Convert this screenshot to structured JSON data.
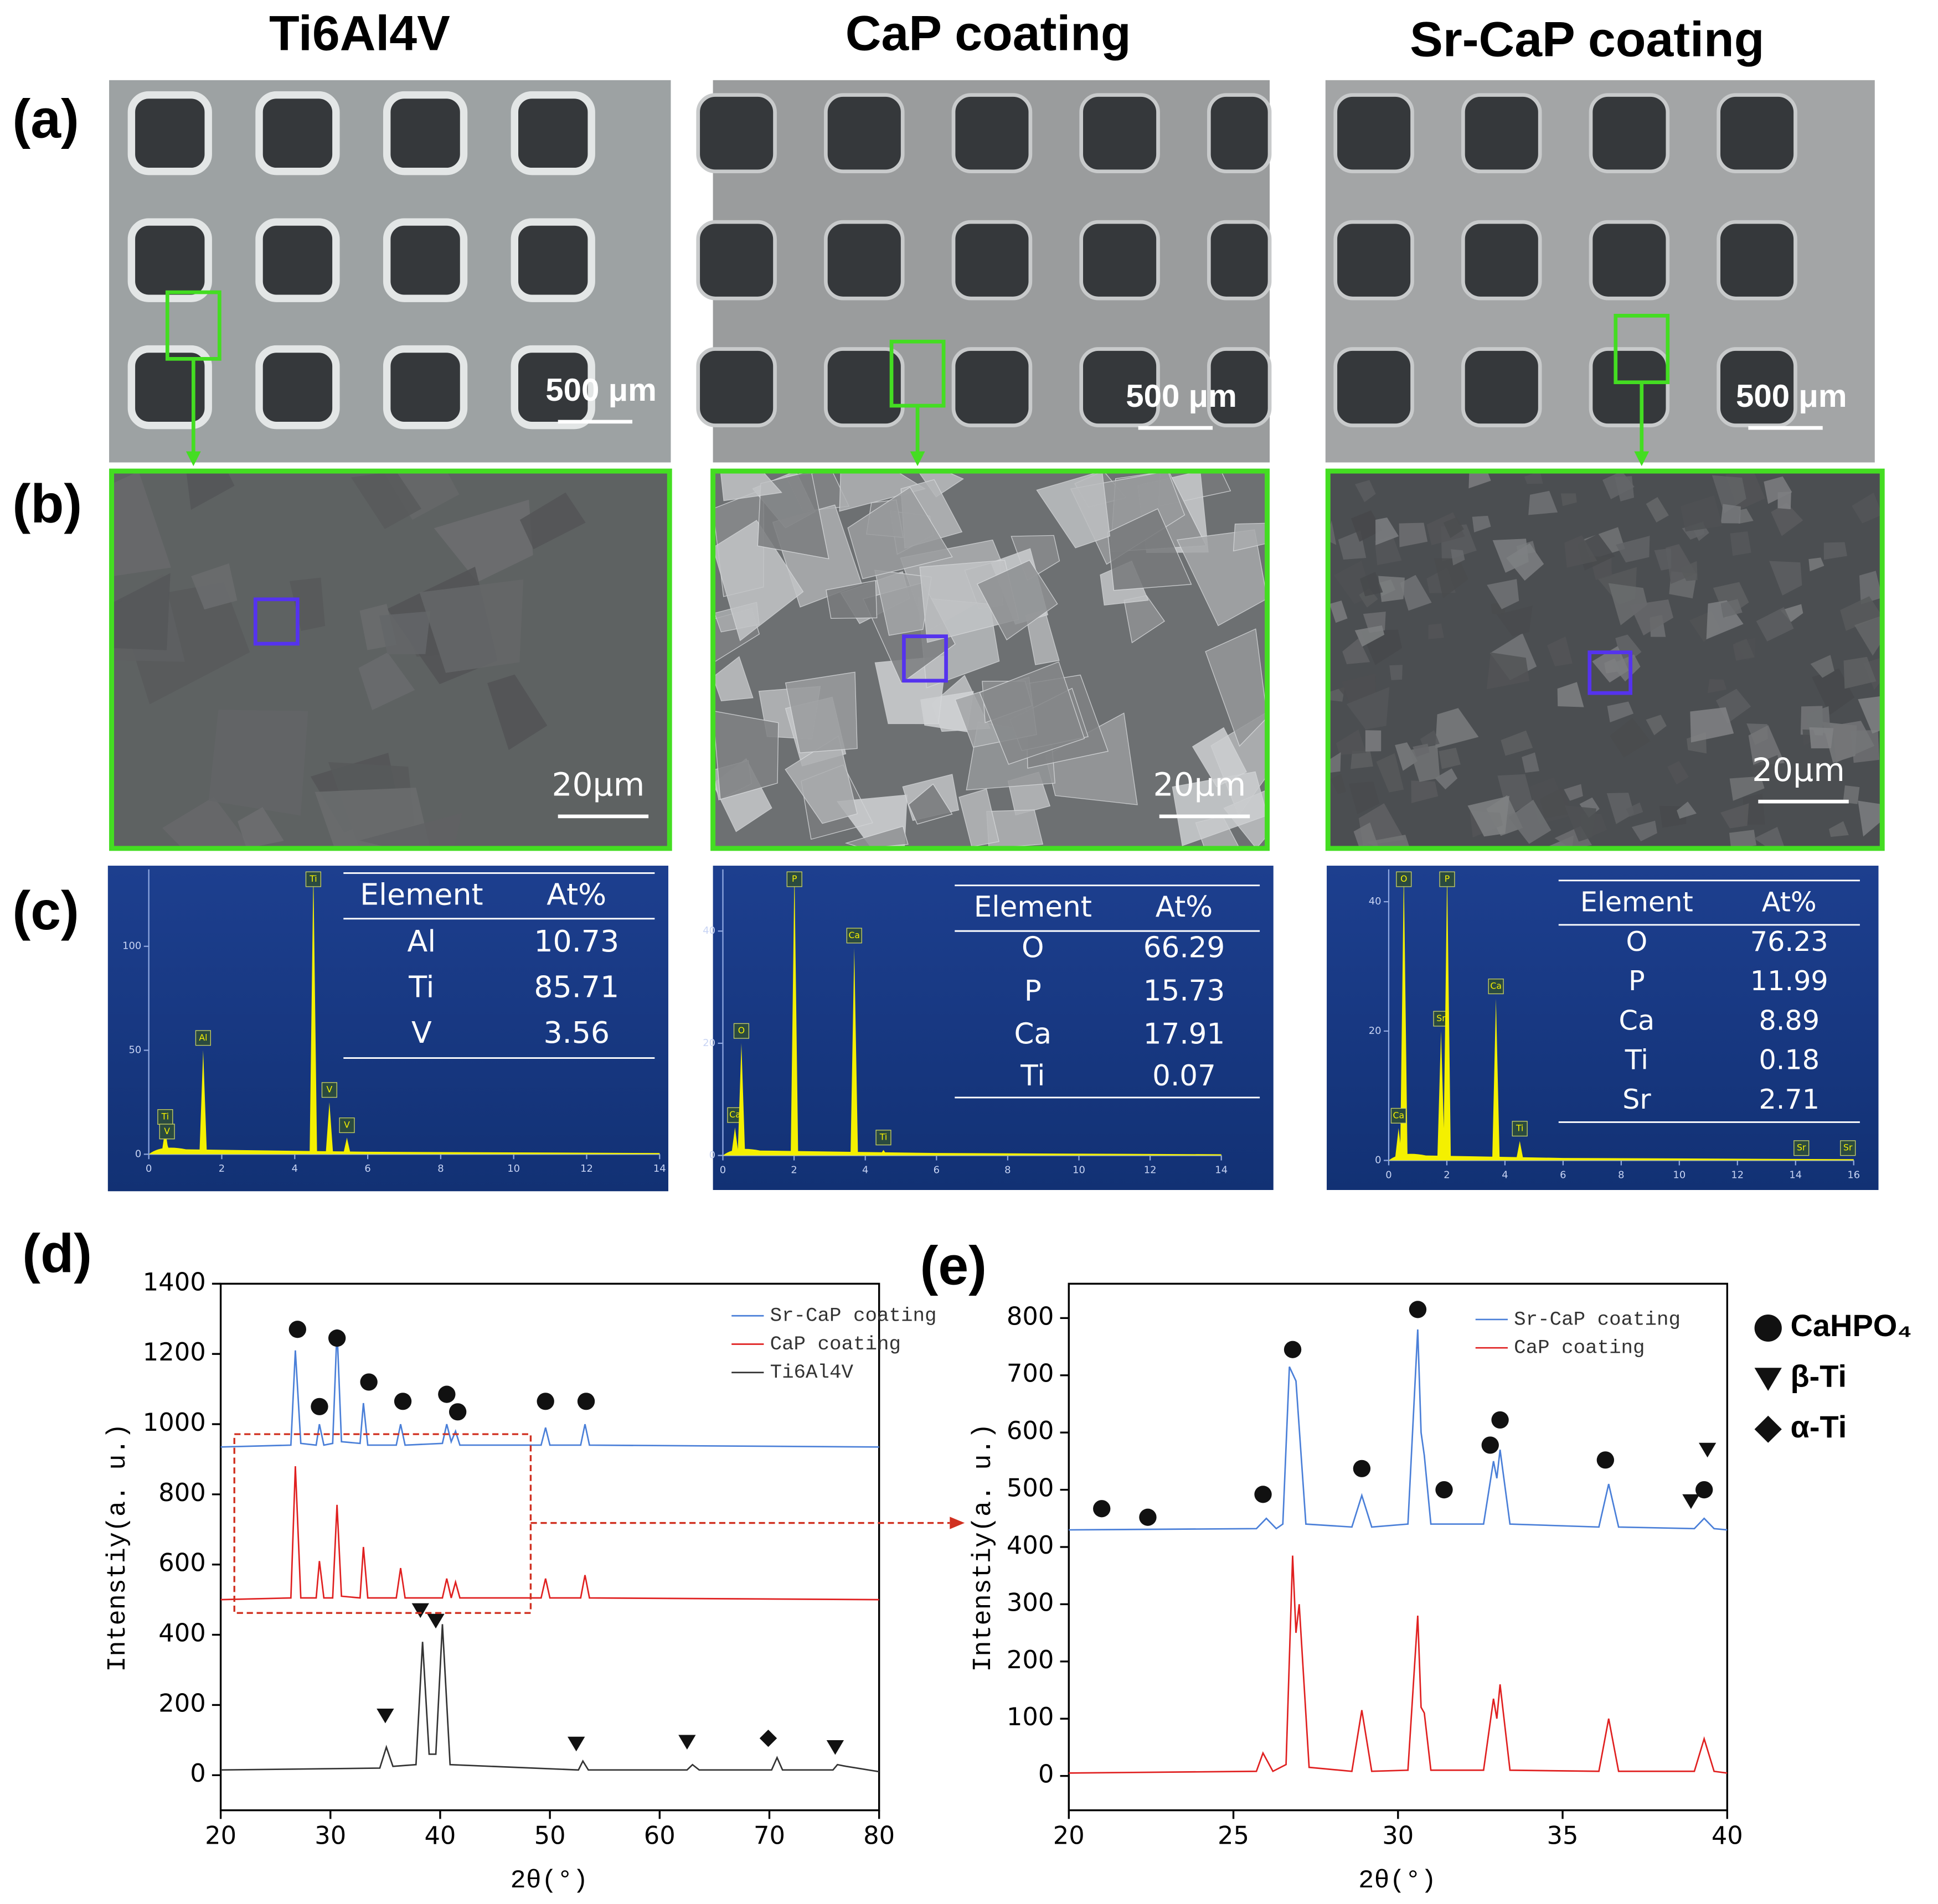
{
  "columns": [
    "Ti6Al4V",
    "CaP coating",
    "Sr-CaP coating"
  ],
  "panel_labels": [
    "(a)",
    "(b)",
    "(c)",
    "(d)",
    "(e)"
  ],
  "sem_scale_bars": [
    [
      "500 μm",
      "20μm"
    ],
    [
      "500 μm",
      "20μm"
    ],
    [
      "500 μm",
      "20μm"
    ]
  ],
  "eds": [
    {
      "table_header": [
        "Element",
        "At%"
      ],
      "rows": [
        [
          "Al",
          "10.73"
        ],
        [
          "Ti",
          "85.71"
        ],
        [
          "V",
          "3.56"
        ]
      ],
      "xlim": [
        0,
        14
      ],
      "ylim": [
        0,
        137
      ],
      "xticks": [
        0,
        2,
        4,
        6,
        8,
        10,
        12,
        14
      ],
      "yticks": [
        0,
        50,
        100
      ],
      "peaks": [
        {
          "label": "Ti",
          "x": 0.45,
          "y": 12
        },
        {
          "label": "V",
          "x": 0.5,
          "y": 5
        },
        {
          "label": "Al",
          "x": 1.49,
          "y": 50
        },
        {
          "label": "Ti",
          "x": 4.51,
          "y": 137
        },
        {
          "label": "V",
          "x": 4.95,
          "y": 25
        },
        {
          "label": "V",
          "x": 5.43,
          "y": 8
        }
      ]
    },
    {
      "table_header": [
        "Element",
        "At%"
      ],
      "rows": [
        [
          "O",
          "66.29"
        ],
        [
          "P",
          "15.73"
        ],
        [
          "Ca",
          "17.91"
        ],
        [
          "Ti",
          "0.07"
        ]
      ],
      "xlim": [
        0,
        14
      ],
      "ylim": [
        0,
        51
      ],
      "xticks": [
        0,
        2,
        4,
        6,
        8,
        10,
        12,
        14
      ],
      "yticks": [
        0,
        20,
        40
      ],
      "peaks": [
        {
          "label": "Ca",
          "x": 0.34,
          "y": 5
        },
        {
          "label": "O",
          "x": 0.52,
          "y": 20
        },
        {
          "label": "P",
          "x": 2.01,
          "y": 51
        },
        {
          "label": "Ca",
          "x": 3.69,
          "y": 37
        },
        {
          "label": "Ti",
          "x": 4.51,
          "y": 1
        }
      ]
    },
    {
      "table_header": [
        "Element",
        "At%"
      ],
      "rows": [
        [
          "O",
          "76.23"
        ],
        [
          "P",
          "11.99"
        ],
        [
          "Ca",
          "8.89"
        ],
        [
          "Ti",
          "0.18"
        ],
        [
          "Sr",
          "2.71"
        ]
      ],
      "xlim": [
        0,
        16
      ],
      "ylim": [
        0,
        45
      ],
      "xticks": [
        0,
        2,
        4,
        6,
        8,
        10,
        12,
        14,
        16
      ],
      "yticks": [
        0,
        20,
        40
      ],
      "peaks": [
        {
          "label": "O",
          "x": 0.52,
          "y": 45
        },
        {
          "label": "Ca",
          "x": 0.34,
          "y": 5
        },
        {
          "label": "Sr",
          "x": 1.8,
          "y": 20
        },
        {
          "label": "P",
          "x": 2.01,
          "y": 45
        },
        {
          "label": "Ca",
          "x": 3.69,
          "y": 25
        },
        {
          "label": "Ti",
          "x": 4.51,
          "y": 3
        },
        {
          "label": "Sr",
          "x": 14.2,
          "y": 0
        },
        {
          "label": "Sr",
          "x": 15.8,
          "y": 0
        }
      ]
    }
  ],
  "chart_data": [
    {
      "type": "line",
      "xlabel": "2θ(°)",
      "ylabel": "Intenstiy(a. u.)",
      "xlim": [
        20,
        80
      ],
      "ylim": [
        -100,
        1400
      ],
      "xticks": [
        20,
        30,
        40,
        50,
        60,
        70,
        80
      ],
      "yticks": [
        0,
        200,
        400,
        600,
        800,
        1000,
        1200,
        1400
      ],
      "series": [
        {
          "name": "Sr-CaP coating",
          "color": "#4a7fd8",
          "x": [
            20,
            26.4,
            26.8,
            27.3,
            28.7,
            29,
            29.4,
            30.2,
            30.6,
            31,
            32.7,
            33,
            33.4,
            36,
            36.4,
            36.8,
            40.2,
            40.6,
            41,
            41.4,
            41.8,
            49.2,
            49.6,
            50,
            52.8,
            53.2,
            53.6,
            80
          ],
          "values": [
            935,
            940,
            1210,
            945,
            940,
            1000,
            940,
            945,
            1270,
            950,
            945,
            1060,
            940,
            940,
            1000,
            940,
            945,
            1000,
            950,
            980,
            940,
            940,
            990,
            940,
            940,
            1000,
            940,
            935
          ]
        },
        {
          "name": "CaP coating",
          "color": "#e02020",
          "x": [
            20,
            26.4,
            26.8,
            27.3,
            28.7,
            29,
            29.4,
            30.2,
            30.6,
            31,
            32.7,
            33,
            33.4,
            36,
            36.4,
            36.8,
            40.2,
            40.6,
            41,
            41.4,
            41.8,
            49.2,
            49.6,
            50,
            52.8,
            53.2,
            53.6,
            80
          ],
          "values": [
            500,
            505,
            880,
            505,
            505,
            610,
            505,
            505,
            770,
            510,
            505,
            650,
            505,
            505,
            590,
            505,
            505,
            560,
            505,
            550,
            505,
            505,
            560,
            505,
            505,
            570,
            505,
            500
          ]
        },
        {
          "name": "Ti6Al4V",
          "color": "#333333",
          "x": [
            20,
            34.5,
            35.1,
            35.7,
            37.8,
            38.4,
            39,
            39.6,
            40.2,
            40.9,
            52.6,
            53,
            53.5,
            62.5,
            63,
            63.6,
            70.2,
            70.7,
            71.2,
            75.8,
            76.2,
            77,
            80
          ],
          "values": [
            15,
            20,
            80,
            25,
            30,
            380,
            60,
            60,
            430,
            30,
            15,
            40,
            15,
            15,
            30,
            15,
            15,
            50,
            15,
            15,
            30,
            25,
            10
          ]
        }
      ],
      "markers": [
        {
          "shape": "circle",
          "x": 27,
          "y": 1270
        },
        {
          "shape": "circle",
          "x": 29,
          "y": 1050
        },
        {
          "shape": "circle",
          "x": 30.6,
          "y": 1245
        },
        {
          "shape": "circle",
          "x": 33.5,
          "y": 1120
        },
        {
          "shape": "circle",
          "x": 36.6,
          "y": 1065
        },
        {
          "shape": "circle",
          "x": 40.6,
          "y": 1085
        },
        {
          "shape": "circle",
          "x": 41.6,
          "y": 1035
        },
        {
          "shape": "circle",
          "x": 49.6,
          "y": 1065
        },
        {
          "shape": "circle",
          "x": 53.3,
          "y": 1065
        },
        {
          "shape": "triangle",
          "x": 35,
          "y": 170
        },
        {
          "shape": "triangle",
          "x": 38.2,
          "y": 470
        },
        {
          "shape": "triangle",
          "x": 39.6,
          "y": 440
        },
        {
          "shape": "triangle",
          "x": 52.4,
          "y": 90
        },
        {
          "shape": "triangle",
          "x": 62.5,
          "y": 95
        },
        {
          "shape": "triangle",
          "x": 76,
          "y": 80
        },
        {
          "shape": "diamond",
          "x": 69.9,
          "y": 105
        }
      ]
    },
    {
      "type": "line",
      "xlabel": "2θ(°)",
      "ylabel": "Intenstiy(a. u.)",
      "xlim": [
        20,
        40
      ],
      "ylim": [
        -60,
        860
      ],
      "xticks": [
        20,
        25,
        30,
        35,
        40
      ],
      "yticks": [
        0,
        100,
        200,
        300,
        400,
        500,
        600,
        700,
        800
      ],
      "series": [
        {
          "name": "Sr-CaP coating",
          "color": "#4a7fd8",
          "x": [
            20,
            25.7,
            26,
            26.3,
            26.5,
            26.7,
            26.9,
            27.2,
            28.6,
            28.9,
            29.2,
            30.3,
            30.6,
            30.7,
            30.8,
            31,
            32.6,
            32.9,
            33,
            33.1,
            33.4,
            36.1,
            36.4,
            36.7,
            39,
            39.3,
            39.6,
            40
          ],
          "values": [
            430,
            432,
            450,
            432,
            440,
            715,
            690,
            440,
            435,
            490,
            435,
            440,
            780,
            600,
            560,
            440,
            440,
            550,
            520,
            570,
            440,
            435,
            510,
            435,
            432,
            450,
            432,
            430
          ]
        },
        {
          "name": "CaP coating",
          "color": "#e02020",
          "x": [
            20,
            25.7,
            25.9,
            26.2,
            26.6,
            26.8,
            26.9,
            27,
            27.3,
            28.6,
            28.9,
            29.2,
            30.3,
            30.6,
            30.7,
            30.8,
            31,
            32.6,
            32.9,
            33,
            33.1,
            33.4,
            36.1,
            36.4,
            36.7,
            39,
            39.3,
            39.6,
            40
          ],
          "values": [
            5,
            8,
            40,
            8,
            20,
            385,
            250,
            300,
            15,
            8,
            115,
            8,
            10,
            280,
            120,
            110,
            10,
            10,
            135,
            100,
            160,
            10,
            8,
            100,
            8,
            8,
            65,
            8,
            5
          ]
        }
      ],
      "markers": [
        {
          "shape": "circle",
          "x": 21,
          "y": 467
        },
        {
          "shape": "circle",
          "x": 22.4,
          "y": 452
        },
        {
          "shape": "circle",
          "x": 25.9,
          "y": 492
        },
        {
          "shape": "circle",
          "x": 26.8,
          "y": 745
        },
        {
          "shape": "circle",
          "x": 28.9,
          "y": 537
        },
        {
          "shape": "circle",
          "x": 30.6,
          "y": 815
        },
        {
          "shape": "circle",
          "x": 31.4,
          "y": 500
        },
        {
          "shape": "circle",
          "x": 32.8,
          "y": 578
        },
        {
          "shape": "circle",
          "x": 33.1,
          "y": 622
        },
        {
          "shape": "circle",
          "x": 36.3,
          "y": 552
        },
        {
          "shape": "circle",
          "x": 39.3,
          "y": 500
        },
        {
          "shape": "triangle",
          "x": 38.9,
          "y": 480
        },
        {
          "shape": "triangle",
          "x": 39.4,
          "y": 570
        }
      ]
    }
  ],
  "marker_legend": [
    {
      "shape": "circle",
      "label": "CaHPO₄"
    },
    {
      "shape": "triangle",
      "label": "β-Ti"
    },
    {
      "shape": "diamond",
      "label": "α-Ti"
    }
  ]
}
